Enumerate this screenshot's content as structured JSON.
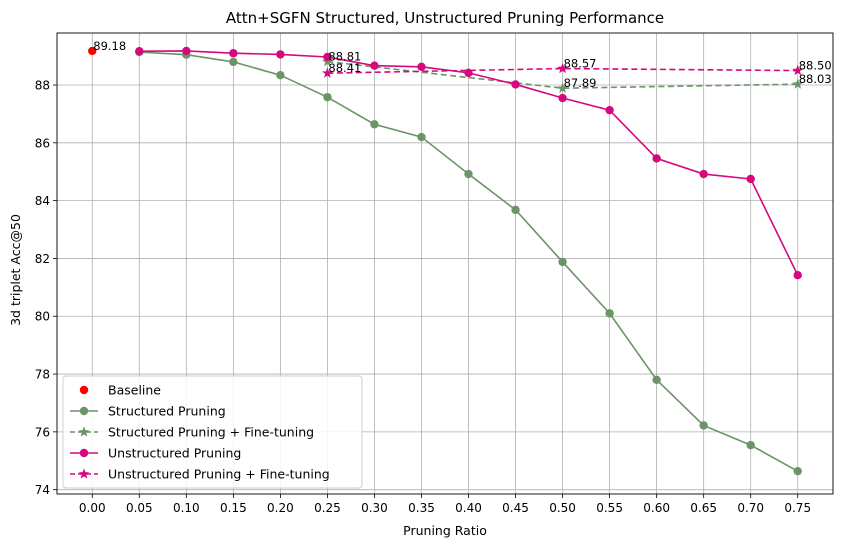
{
  "chart_data": {
    "type": "line",
    "title": "Attn+SGFN Structured, Unstructured Pruning Performance",
    "xlabel": "Pruning Ratio",
    "ylabel": "3d triplet Acc@50",
    "xlim": [
      -0.0375,
      0.7875
    ],
    "ylim": [
      73.85,
      89.8
    ],
    "xticks": [
      0.0,
      0.05,
      0.1,
      0.15,
      0.2,
      0.25,
      0.3,
      0.35,
      0.4,
      0.45,
      0.5,
      0.55,
      0.6,
      0.65,
      0.7,
      0.75
    ],
    "xtick_labels": [
      "0.00",
      "0.05",
      "0.10",
      "0.15",
      "0.20",
      "0.25",
      "0.30",
      "0.35",
      "0.40",
      "0.45",
      "0.50",
      "0.55",
      "0.60",
      "0.65",
      "0.70",
      "0.75"
    ],
    "yticks": [
      74,
      76,
      78,
      80,
      82,
      84,
      86,
      88
    ],
    "grid": true,
    "legend_position": "bottom-left",
    "series": [
      {
        "name": "Baseline",
        "kind": "scatter",
        "color": "#ff0000",
        "marker": "circle",
        "x": [
          0.0
        ],
        "y": [
          89.18
        ]
      },
      {
        "name": "Structured Pruning",
        "kind": "line",
        "color": "#6b9467",
        "marker": "circle",
        "dash": "solid",
        "x": [
          0.05,
          0.1,
          0.15,
          0.2,
          0.25,
          0.3,
          0.35,
          0.4,
          0.45,
          0.5,
          0.55,
          0.6,
          0.65,
          0.7,
          0.75
        ],
        "y": [
          89.14,
          89.05,
          88.8,
          88.34,
          87.58,
          86.64,
          86.2,
          84.92,
          83.68,
          81.88,
          80.1,
          77.8,
          76.22,
          75.54,
          74.64
        ]
      },
      {
        "name": "Structured Pruning + Fine-tuning",
        "kind": "line",
        "color": "#6b9467",
        "marker": "star",
        "dash": "dashed",
        "x": [
          0.25,
          0.5,
          0.75
        ],
        "y": [
          88.81,
          87.89,
          88.03
        ]
      },
      {
        "name": "Unstructured Pruning",
        "kind": "line",
        "color": "#d6087e",
        "marker": "circle",
        "dash": "solid",
        "x": [
          0.05,
          0.1,
          0.15,
          0.2,
          0.25,
          0.3,
          0.35,
          0.4,
          0.45,
          0.5,
          0.55,
          0.6,
          0.65,
          0.7,
          0.75
        ],
        "y": [
          89.17,
          89.18,
          89.1,
          89.06,
          88.97,
          88.67,
          88.63,
          88.42,
          88.02,
          87.55,
          87.13,
          85.46,
          84.92,
          84.75,
          81.42
        ]
      },
      {
        "name": "Unstructured Pruning + Fine-tuning",
        "kind": "line",
        "color": "#d6087e",
        "marker": "star",
        "dash": "dashed",
        "x": [
          0.25,
          0.5,
          0.75
        ],
        "y": [
          88.41,
          88.57,
          88.5
        ]
      }
    ],
    "annotations": [
      {
        "text": "89.18",
        "x": 0.0,
        "y": 89.18
      },
      {
        "text": "88.81",
        "x": 0.25,
        "y": 88.81
      },
      {
        "text": "88.41",
        "x": 0.25,
        "y": 88.41
      },
      {
        "text": "88.57",
        "x": 0.5,
        "y": 88.57
      },
      {
        "text": "87.89",
        "x": 0.5,
        "y": 87.89
      },
      {
        "text": "88.50",
        "x": 0.75,
        "y": 88.5
      },
      {
        "text": "88.03",
        "x": 0.75,
        "y": 88.03
      }
    ]
  }
}
